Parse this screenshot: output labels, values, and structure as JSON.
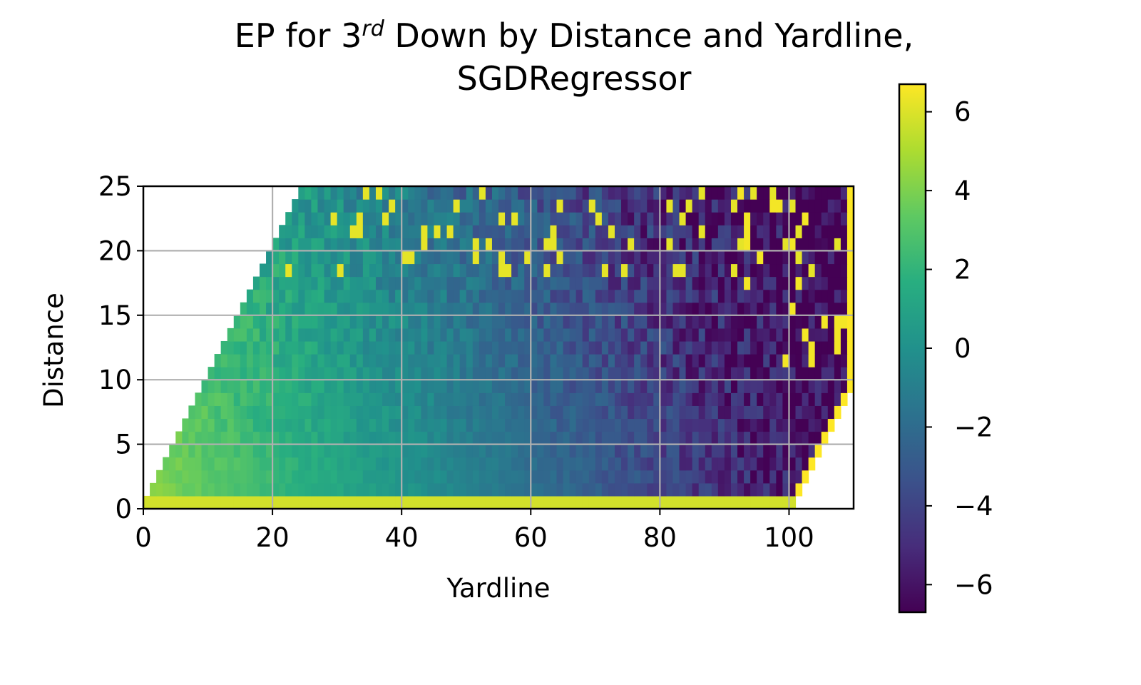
{
  "chart_data": {
    "type": "heatmap",
    "title_line1_pre": "EP for 3",
    "title_sup": "rd",
    "title_line1_post": " Down by Distance and Yardline,",
    "title_line2": "SGDRegressor",
    "xlabel": "Yardline",
    "ylabel": "Distance",
    "xlim": [
      0,
      110
    ],
    "ylim": [
      0,
      25
    ],
    "xticks": [
      0,
      20,
      40,
      60,
      80,
      100
    ],
    "yticks": [
      0,
      5,
      10,
      15,
      20,
      25
    ],
    "grid": true,
    "colormap": "viridis",
    "colorbar": {
      "min": -6.7,
      "max": 6.7,
      "ticks": [
        6,
        4,
        2,
        0,
        -2,
        -4,
        -6
      ],
      "tick_labels": [
        "6",
        "4",
        "2",
        "0",
        "−2",
        "−4",
        "−6"
      ]
    },
    "cell_size": {
      "yardline": 1,
      "distance": 1
    },
    "valid_region": "cells exist where yardline >= distance and yardline <= distance + 100; distance 0 row is a separate high-EP band",
    "ep_model": {
      "ep_at_yardline_0": 4.3,
      "ep_at_yardline_100": -5.8,
      "distance_0_row_value": 5.8,
      "goal_line_edge_value": 6.7,
      "noise_grows_toward": "long distance and high yardline"
    }
  }
}
